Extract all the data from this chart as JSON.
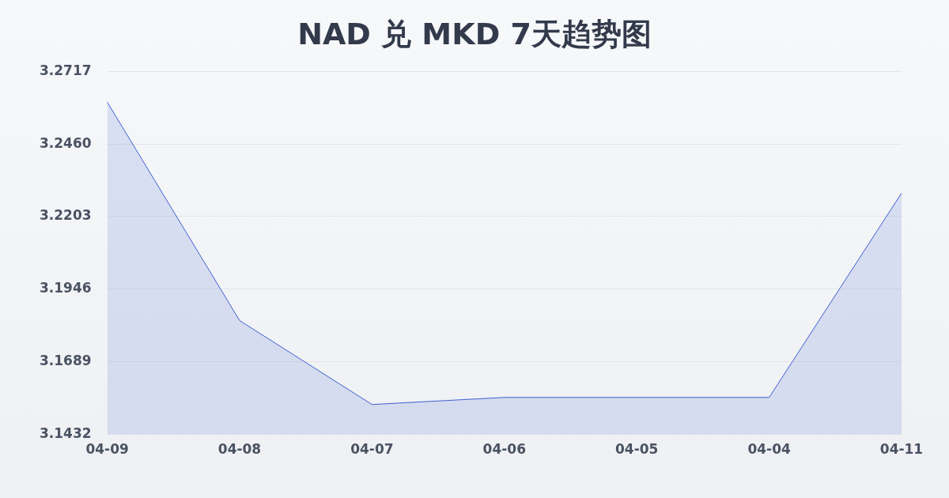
{
  "chart_data": {
    "type": "area",
    "title": "NAD 兑 MKD 7天趋势图",
    "categories": [
      "04-09",
      "04-08",
      "04-07",
      "04-06",
      "04-05",
      "04-04",
      "04-11"
    ],
    "series": [
      {
        "color": "#3d5fd0",
        "values": [
          3.2608,
          3.1835,
          3.1538,
          3.1563,
          3.1563,
          3.1563,
          3.2286
        ]
      }
    ],
    "ylim": [
      3.1432,
      3.2717
    ],
    "yticks": [
      3.1432,
      3.1689,
      3.1946,
      3.2203,
      {
        "value": 3.246,
        "label": "3.2460"
      },
      3.2717
    ],
    "grid": "y",
    "legend": false,
    "marker": "none",
    "line_style": "solid"
  }
}
